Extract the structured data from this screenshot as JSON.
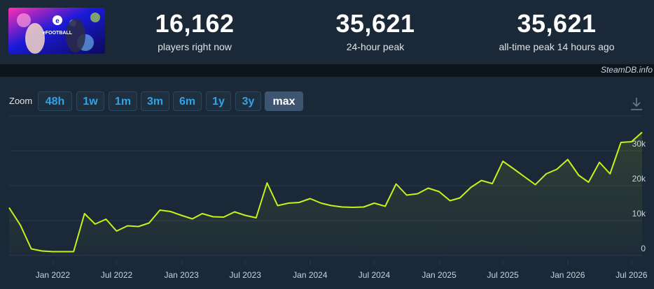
{
  "header": {
    "stats": [
      {
        "value": "16,162",
        "label": "players right now"
      },
      {
        "value": "35,621",
        "label": "24-hour peak"
      },
      {
        "value": "35,621",
        "label": "all-time peak 14 hours ago"
      }
    ],
    "game_art_text": "eFOOTBALL"
  },
  "credit": "SteamDB.info",
  "zoom": {
    "label": "Zoom",
    "buttons": [
      "48h",
      "1w",
      "1m",
      "3m",
      "6m",
      "1y",
      "3y",
      "max"
    ],
    "active": "max"
  },
  "colors": {
    "line": "#c6f21c",
    "grid": "#2a3a4b",
    "axis_text": "#c6d4df",
    "button_text": "#2fa3e6"
  },
  "chart_data": {
    "type": "line",
    "x_tick_labels": [
      "Jan 2022",
      "Jul 2022",
      "Jan 2023",
      "Jul 2023",
      "Jan 2024",
      "Jul 2024",
      "Jan 2025",
      "Jul 2025",
      "Jan 2026",
      "Jul 2026"
    ],
    "y_tick_labels": [
      "0",
      "10k",
      "20k",
      "30k"
    ],
    "ylim": [
      0,
      40000
    ],
    "grid": true,
    "legend": "none",
    "series": [
      {
        "x": [
          "2021-08-30",
          "2021-10-01",
          "2021-11-01",
          "2021-12-01",
          "2022-01-01",
          "2022-02-01",
          "2022-03-01",
          "2022-04-01",
          "2022-05-01",
          "2022-06-01",
          "2022-07-01",
          "2022-08-01",
          "2022-09-01",
          "2022-10-01",
          "2022-11-01",
          "2022-12-01",
          "2023-01-01",
          "2023-02-01",
          "2023-03-01",
          "2023-04-01",
          "2023-05-01",
          "2023-06-01",
          "2023-07-01",
          "2023-08-01",
          "2023-09-01",
          "2023-10-01",
          "2023-11-01",
          "2023-12-01",
          "2024-01-01",
          "2024-02-01",
          "2024-03-01",
          "2024-04-01",
          "2024-05-01",
          "2024-06-01",
          "2024-07-01",
          "2024-08-01",
          "2024-09-01",
          "2024-10-01",
          "2024-11-01",
          "2024-12-01",
          "2025-01-01",
          "2025-02-01",
          "2025-03-01",
          "2025-04-01",
          "2025-05-01",
          "2025-06-01",
          "2025-07-01",
          "2025-08-01",
          "2025-09-01",
          "2025-10-01",
          "2025-11-01",
          "2025-12-01",
          "2026-01-01",
          "2026-02-01",
          "2026-03-01",
          "2026-04-01",
          "2026-05-01",
          "2026-06-01",
          "2026-07-01",
          "2026-07-31"
        ],
        "y": [
          13700,
          8700,
          1900,
          1300,
          1100,
          1100,
          1100,
          12000,
          9000,
          10400,
          7000,
          8500,
          8300,
          9300,
          13000,
          12600,
          11500,
          10500,
          12000,
          11100,
          11000,
          12500,
          11500,
          10800,
          20800,
          14300,
          15000,
          15200,
          16300,
          15000,
          14300,
          13900,
          13800,
          13900,
          15000,
          14100,
          20500,
          17300,
          17700,
          19300,
          18300,
          15700,
          16500,
          19500,
          21500,
          20600,
          27000,
          24800,
          22500,
          20300,
          23400,
          24700,
          27500,
          23000,
          21000,
          26700,
          23400,
          32400,
          32600,
          35300
        ]
      }
    ]
  }
}
